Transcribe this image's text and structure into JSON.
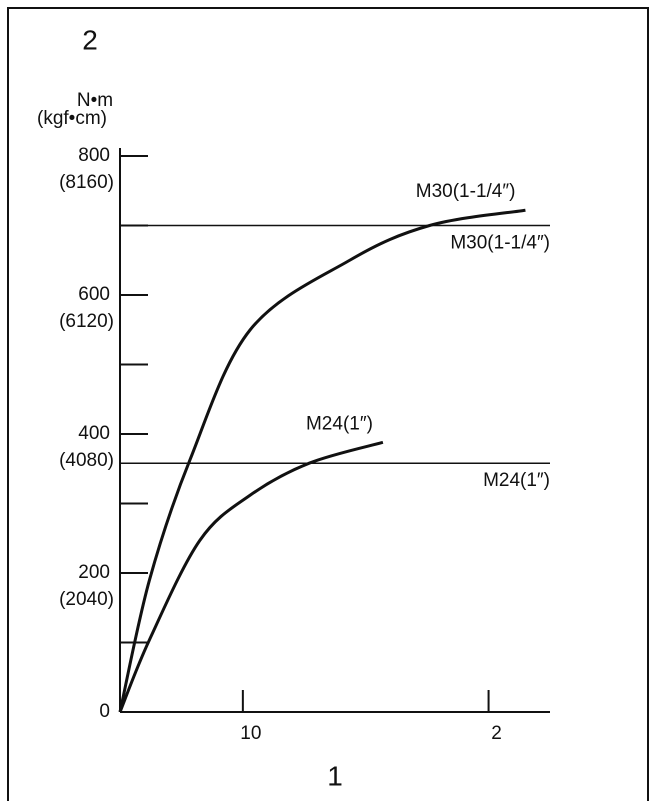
{
  "chart_data": {
    "type": "line",
    "y_axis_label": "2",
    "y_unit": "N•m",
    "y_unit_alt": "(kgf•cm)",
    "x_axis_label": "1",
    "xlim": [
      0,
      35
    ],
    "xticks": [
      10,
      {
        "value": 30,
        "label": "2"
      }
    ],
    "ylim": [
      0,
      800
    ],
    "yticks": [
      0,
      200,
      400,
      600,
      800
    ],
    "ytick_alt_labels": [
      null,
      "(2040)",
      "(4080)",
      "(6120)",
      "(8160)"
    ],
    "minor_yticks": [
      100,
      300,
      500,
      700
    ],
    "color": "#111111",
    "series": [
      {
        "name": "M30(1-1/4″)",
        "x": [
          0,
          2.4,
          5.7,
          10.6,
          18.7,
          25.2,
          33
        ],
        "values": [
          0,
          190,
          363,
          550,
          650,
          700,
          722
        ]
      },
      {
        "name": "M24(1″)",
        "x": [
          0,
          2.4,
          6.5,
          10.6,
          15.4,
          21.4
        ],
        "values": [
          0,
          104,
          247,
          312,
          358,
          388
        ]
      }
    ],
    "reference_lines": [
      {
        "value": 700,
        "label": "M30(1-1/4″)"
      },
      {
        "value": 358,
        "label": "M24(1″)"
      }
    ]
  }
}
